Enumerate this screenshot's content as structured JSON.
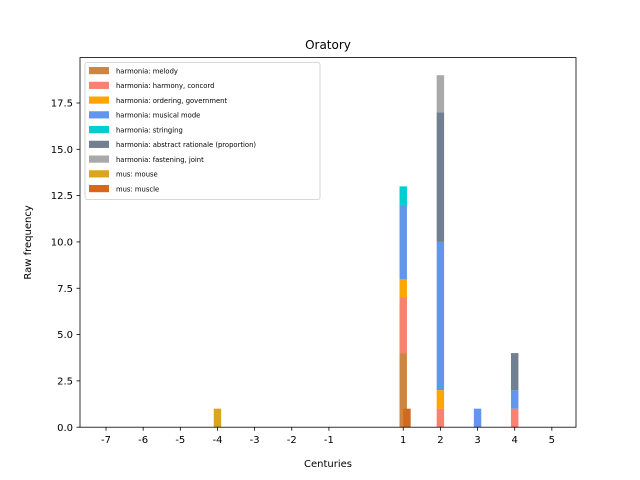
{
  "chart_data": {
    "type": "bar",
    "stacked": true,
    "title": "Oratory",
    "xlabel": "Centuries",
    "ylabel": "Raw frequency",
    "xlim": [
      -7.6,
      5.75
    ],
    "ylim": [
      0,
      19.95
    ],
    "x_ticks": [
      "-7",
      "-6",
      "-5",
      "-4",
      "-3",
      "-2",
      "-1",
      "1",
      "2",
      "3",
      "4",
      "5"
    ],
    "y_ticks": [
      "0.0",
      "2.5",
      "5.0",
      "7.5",
      "10.0",
      "12.5",
      "15.0",
      "17.5"
    ],
    "y_tick_values": [
      0,
      2.5,
      5,
      7.5,
      10,
      12.5,
      15,
      17.5
    ],
    "grid": false,
    "legend_position": "top-left",
    "bar_width": 0.2,
    "series": [
      {
        "name": "harmonia: melody",
        "color": "#cd853f",
        "points": [
          {
            "x": 1,
            "y": 4
          }
        ]
      },
      {
        "name": "harmonia: harmony, concord",
        "color": "#fa8072",
        "points": [
          {
            "x": 1,
            "y": 3
          },
          {
            "x": 2,
            "y": 1
          },
          {
            "x": 4,
            "y": 1
          }
        ]
      },
      {
        "name": "harmonia: ordering, government",
        "color": "#ffa500",
        "points": [
          {
            "x": 1,
            "y": 1
          },
          {
            "x": 2,
            "y": 1
          }
        ]
      },
      {
        "name": "harmonia: musical mode",
        "color": "#6495ed",
        "points": [
          {
            "x": 1,
            "y": 4
          },
          {
            "x": 2,
            "y": 8
          },
          {
            "x": 3,
            "y": 1
          },
          {
            "x": 4,
            "y": 1
          }
        ]
      },
      {
        "name": "harmonia: stringing",
        "color": "#00ced1",
        "points": [
          {
            "x": 1,
            "y": 1
          }
        ]
      },
      {
        "name": "harmonia: abstract rationale (proportion)",
        "color": "#708090",
        "points": [
          {
            "x": 2,
            "y": 7
          },
          {
            "x": 4,
            "y": 2
          }
        ]
      },
      {
        "name": "harmonia: fastening, joint",
        "color": "#a9a9a9",
        "points": [
          {
            "x": 2,
            "y": 2
          }
        ]
      },
      {
        "name": "mus: mouse",
        "color": "#daa520",
        "points": [
          {
            "x": -4,
            "y": 1
          }
        ]
      },
      {
        "name": "mus: muscle",
        "color": "#d2691e",
        "points": [
          {
            "x": 1.1,
            "y": 1
          }
        ]
      }
    ]
  }
}
